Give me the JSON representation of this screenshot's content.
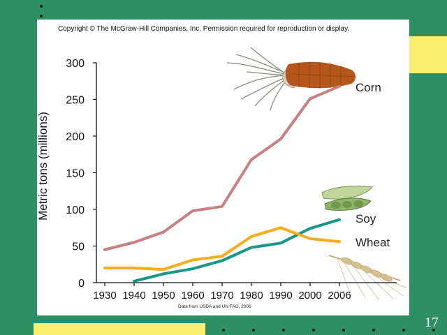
{
  "slide": {
    "number": "17",
    "colors": {
      "background": "#2e8f62",
      "accent": "#fbef70"
    }
  },
  "figure": {
    "copyright": "Copyright © The McGraw-Hill Companies, Inc. Permission required for reproduction or display.",
    "source": "Data from USDA and UN FAO, 2006"
  },
  "chart_data": {
    "type": "line",
    "title": "",
    "xlabel": "",
    "ylabel": "Metric tons (millions)",
    "categories": [
      "1930",
      "1940",
      "1950",
      "1960",
      "1970",
      "1980",
      "1990",
      "2000",
      "2006"
    ],
    "ylim": [
      0,
      300
    ],
    "yticks": [
      0,
      50,
      100,
      150,
      200,
      250,
      300
    ],
    "grid": false,
    "series": [
      {
        "name": "Corn",
        "color": "#c98080",
        "values": [
          45,
          55,
          69,
          98,
          104,
          168,
          196,
          251,
          268
        ]
      },
      {
        "name": "Soy",
        "color": "#16978a",
        "values": [
          null,
          2,
          12,
          19,
          30,
          48,
          54,
          74,
          86
        ]
      },
      {
        "name": "Wheat",
        "color": "#f9ad1c",
        "values": [
          20,
          20,
          18,
          31,
          36,
          63,
          75,
          60,
          56
        ]
      }
    ]
  }
}
